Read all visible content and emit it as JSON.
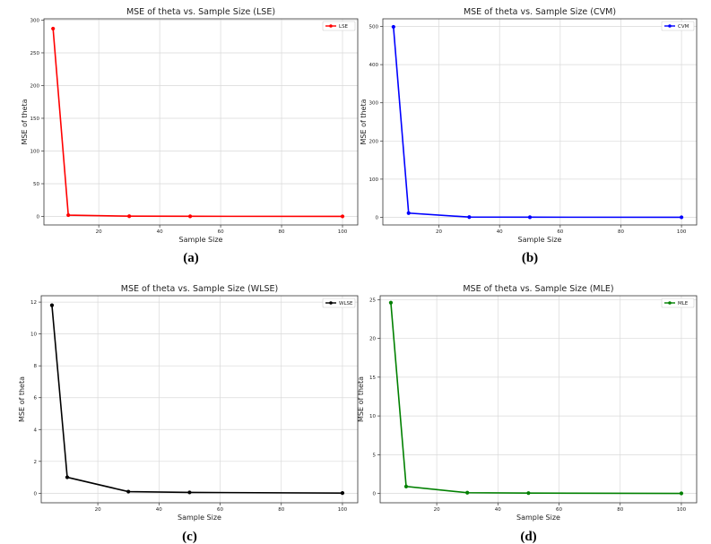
{
  "chart_data": [
    {
      "type": "line",
      "panel_label": "(a)",
      "title": "MSE of theta vs. Sample Size (LSE)",
      "xlabel": "Sample Size",
      "ylabel": "MSE of theta",
      "xlim": [
        2,
        105
      ],
      "ylim": [
        -13,
        302
      ],
      "xticks": [
        20,
        40,
        60,
        80,
        100
      ],
      "yticks": [
        0,
        50,
        100,
        150,
        200,
        250,
        300
      ],
      "grid": true,
      "legend_position": "top-right",
      "series": [
        {
          "name": "LSE",
          "color": "#ff0000",
          "x": [
            5,
            10,
            30,
            50,
            100
          ],
          "y": [
            287,
            2,
            0.4,
            0.2,
            0.1
          ]
        }
      ]
    },
    {
      "type": "line",
      "panel_label": "(b)",
      "title": "MSE of theta vs. Sample Size (CVM)",
      "xlabel": "Sample Size",
      "ylabel": "MSE of theta",
      "xlim": [
        1.5,
        105
      ],
      "ylim": [
        -20,
        520
      ],
      "xticks": [
        20,
        40,
        60,
        80,
        100
      ],
      "yticks": [
        0,
        100,
        200,
        300,
        400,
        500
      ],
      "grid": true,
      "legend_position": "top-right",
      "series": [
        {
          "name": "CVM",
          "color": "#0000ff",
          "x": [
            5,
            10,
            30,
            50,
            100
          ],
          "y": [
            499,
            11,
            0.6,
            0.3,
            0.1
          ]
        }
      ]
    },
    {
      "type": "line",
      "panel_label": "(c)",
      "title": "MSE of theta vs. Sample Size (WLSE)",
      "xlabel": "Sample Size",
      "ylabel": "MSE of theta",
      "xlim": [
        1.5,
        105
      ],
      "ylim": [
        -0.6,
        12.4
      ],
      "xticks": [
        20,
        40,
        60,
        80,
        100
      ],
      "yticks": [
        0,
        2,
        4,
        6,
        8,
        10,
        12
      ],
      "grid": true,
      "legend_position": "top-right",
      "series": [
        {
          "name": "WLSE",
          "color": "#000000",
          "x": [
            5,
            10,
            30,
            50,
            100
          ],
          "y": [
            11.8,
            1.0,
            0.1,
            0.05,
            0.01
          ]
        }
      ]
    },
    {
      "type": "line",
      "panel_label": "(d)",
      "title": "MSE of theta vs. Sample Size (MLE)",
      "xlabel": "Sample Size",
      "ylabel": "MSE of theta",
      "xlim": [
        1.5,
        105
      ],
      "ylim": [
        -1.2,
        25.5
      ],
      "xticks": [
        20,
        40,
        60,
        80,
        100
      ],
      "yticks": [
        0,
        5,
        10,
        15,
        20,
        25
      ],
      "grid": true,
      "legend_position": "top-right",
      "series": [
        {
          "name": "MLE",
          "color": "#008000",
          "x": [
            5,
            10,
            30,
            50,
            100
          ],
          "y": [
            24.6,
            0.9,
            0.1,
            0.05,
            0.01
          ]
        }
      ]
    }
  ]
}
